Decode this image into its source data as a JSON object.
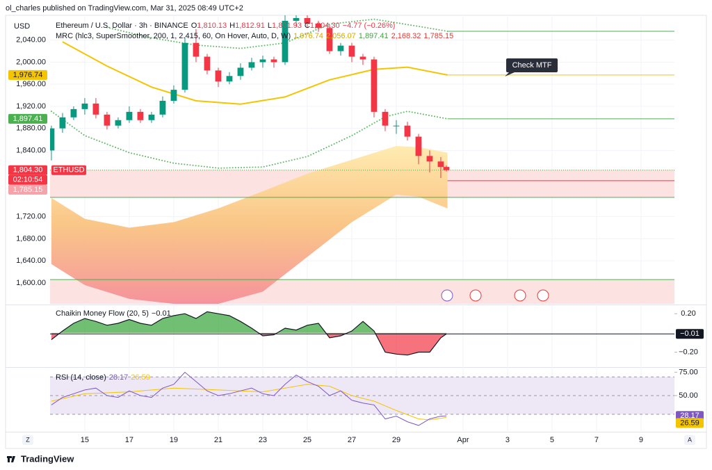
{
  "header": {
    "attribution": "ol_charles published on TradingView.com, Mar 31, 2025 08:49 UTC+2",
    "currency": "USD",
    "logo": "TradingView",
    "zoom_left": "Z",
    "zoom_right": "A"
  },
  "chart_data": [
    {
      "type": "candlestick",
      "title": "Ethereum / U.S. Dollar · 3h · BINANCE",
      "ohlc_legend": [
        {
          "key": "O",
          "text": "1,810.13"
        },
        {
          "key": "H",
          "text": "1,812.91"
        },
        {
          "key": "L",
          "text": "1,801.93"
        },
        {
          "key": "C",
          "text": "1,804.30"
        }
      ],
      "change": "−4.77 (−0.26%)",
      "indicator_title": "MRC (hlc3, SuperSmoother, 200, 1, 2.415, 60, On Hover, Auto, D, W)",
      "indicator_values": [
        {
          "text": "1,976.74",
          "color": "#d4a800"
        },
        {
          "text": "2,056.07",
          "color": "#d4a800"
        },
        {
          "text": "1,897.41",
          "color": "#43a047"
        },
        {
          "text": "2,168.32",
          "color": "#e53935"
        },
        {
          "text": "1,785.15",
          "color": "#e53935"
        }
      ],
      "x": [
        13.5,
        14,
        14.5,
        15,
        15.5,
        16,
        16.5,
        17,
        17.5,
        18,
        18.5,
        19,
        19.5,
        20,
        20.5,
        21,
        21.5,
        22,
        22.5,
        23,
        23.5,
        24,
        24.5,
        25,
        25.5,
        26,
        26.5,
        27,
        27.5,
        28,
        28.5,
        29,
        29.5,
        30,
        30.5,
        31,
        31.25
      ],
      "open": [
        1840,
        1880,
        1900,
        1915,
        1925,
        1905,
        1885,
        1895,
        1910,
        1895,
        1905,
        1930,
        1950,
        2035,
        2010,
        1985,
        1965,
        1975,
        1990,
        2000,
        2005,
        2000,
        2075,
        2080,
        2070,
        2062,
        2020,
        2030,
        2010,
        2005,
        1910,
        1885,
        1885,
        1865,
        1830,
        1820,
        1810.13
      ],
      "high": [
        1885,
        1908,
        1920,
        1935,
        1935,
        1910,
        1900,
        1920,
        1915,
        1910,
        1938,
        1958,
        2045,
        2060,
        2015,
        1990,
        1982,
        1998,
        2008,
        2012,
        2010,
        2085,
        2090,
        2085,
        2075,
        2068,
        2035,
        2035,
        2015,
        2010,
        1915,
        1895,
        1892,
        1870,
        1840,
        1828,
        1812.91
      ],
      "low": [
        1822,
        1872,
        1895,
        1905,
        1898,
        1878,
        1880,
        1890,
        1890,
        1890,
        1900,
        1925,
        1945,
        2000,
        1978,
        1955,
        1960,
        1968,
        1985,
        1990,
        1990,
        1995,
        2065,
        2062,
        2055,
        2015,
        2012,
        2000,
        1995,
        1900,
        1875,
        1870,
        1858,
        1815,
        1800,
        1790,
        1801.93
      ],
      "close": [
        1880,
        1900,
        1915,
        1925,
        1905,
        1885,
        1895,
        1910,
        1895,
        1905,
        1930,
        1950,
        2035,
        2010,
        1985,
        1965,
        1975,
        1990,
        2000,
        2005,
        2000,
        2075,
        2080,
        2070,
        2062,
        2020,
        2030,
        2010,
        2005,
        1910,
        1885,
        1885,
        1865,
        1830,
        1820,
        1810,
        1804.3
      ],
      "up_color": "#089981",
      "down_color": "#f23645",
      "ylim": [
        1562,
        2085
      ],
      "yticks": [
        {
          "value": 2040,
          "label": "2,040.00"
        },
        {
          "value": 2000,
          "label": "2,000.00"
        },
        {
          "value": 1960,
          "label": "1,960.00"
        },
        {
          "value": 1920,
          "label": "1,920.00"
        },
        {
          "value": 1880,
          "label": "1,880.00"
        },
        {
          "value": 1840,
          "label": "1,840.00"
        },
        {
          "value": 1720,
          "label": "1,720.00"
        },
        {
          "value": 1680,
          "label": "1,680.00"
        },
        {
          "value": 1640,
          "label": "1,640.00"
        },
        {
          "value": 1600,
          "label": "1,600.00"
        }
      ],
      "xlim": [
        13.44,
        41.5
      ],
      "xticks": [
        15,
        17,
        19,
        21,
        23,
        25,
        27,
        29,
        {
          "value": 32,
          "label": "Apr"
        },
        {
          "value": 34,
          "label": "3"
        },
        {
          "value": 36,
          "label": "5"
        },
        {
          "value": 38,
          "label": "7"
        },
        {
          "value": 40,
          "label": "9"
        }
      ],
      "grid": true,
      "mrc_mean": {
        "color": "#f5c400",
        "x": [
          14,
          16,
          18,
          20,
          22,
          24,
          26,
          28,
          29.5,
          31.3
        ],
        "values": [
          2037,
          1993,
          1955,
          1930,
          1924,
          1937,
          1968,
          1987,
          1991,
          1976.74
        ]
      },
      "mrc_upper": {
        "color": "#66bb6a",
        "x": [
          16,
          18,
          20,
          22,
          24,
          26,
          28,
          30,
          31.3
        ],
        "values": [
          2063,
          2044,
          2031,
          2025,
          2035,
          2069,
          2078,
          2065,
          2056.07
        ]
      },
      "mrc_lower": {
        "color": "#66bb6a",
        "x": [
          13.5,
          15,
          17,
          19,
          21,
          23,
          25,
          27,
          28.5,
          29.5,
          31.3
        ],
        "values": [
          1911,
          1867,
          1836,
          1817,
          1808,
          1810,
          1829,
          1867,
          1901,
          1911,
          1897.41
        ]
      },
      "mrc_band": {
        "x": [
          13.5,
          15,
          17,
          19,
          21,
          23,
          25,
          27,
          29,
          30,
          31.3
        ],
        "upper": [
          1754,
          1716,
          1700,
          1710,
          1735,
          1766,
          1798,
          1823,
          1848,
          1846,
          1836
        ],
        "lower": [
          1634,
          1596,
          1571,
          1562,
          1562,
          1584,
          1647,
          1710,
          1760,
          1756,
          1735
        ]
      },
      "zones": [
        {
          "from": 1755,
          "to": 1805,
          "color": "#fde2e2"
        },
        {
          "from": 1562,
          "to": 1606,
          "color": "#fde2e2"
        }
      ],
      "levels": [
        {
          "value": 2056.07,
          "color": "#4caf50",
          "full": false
        },
        {
          "value": 1976.74,
          "color": "#f5c400",
          "full": false
        },
        {
          "value": 1897.41,
          "color": "#4caf50",
          "full": false
        },
        {
          "value": 1785.15,
          "color": "#f23645",
          "full": false
        },
        {
          "value": 1755,
          "color": "#4caf50",
          "full": true
        },
        {
          "value": 1606,
          "color": "#4caf50",
          "full": true
        }
      ],
      "price_labels": [
        {
          "value": 1976.74,
          "label": "1,976.74",
          "color": "#f5c400",
          "text_color": "#131722"
        },
        {
          "value": 1897.41,
          "label": "1,897.41",
          "color": "#4caf50",
          "text_color": "#ffffff"
        }
      ],
      "last_price": {
        "value": 1804.3,
        "label": "1,804.30",
        "symbol": "ETHUSD",
        "countdown": "02:10:54",
        "color": "#f23645"
      },
      "mrc_low_label": {
        "value": 1785.15,
        "label": "1,785.15",
        "color": "#f7a1a8"
      },
      "callout": "Check MTF"
    },
    {
      "type": "area",
      "title": "Chaikin Money Flow (20, 5)",
      "value_label": "−0.01",
      "x": [
        13.5,
        14,
        14.5,
        15,
        15.5,
        16,
        16.5,
        17,
        17.5,
        18,
        18.5,
        19,
        19.5,
        20,
        20.5,
        21,
        21.5,
        22,
        22.5,
        23,
        23.5,
        24,
        24.5,
        25,
        25.5,
        26,
        26.5,
        27,
        27.5,
        28,
        28.5,
        29,
        29.5,
        30,
        30.5,
        31,
        31.25
      ],
      "values": [
        -0.07,
        0.02,
        0.1,
        0.15,
        0.12,
        0.08,
        0.1,
        0.14,
        0.1,
        0.08,
        0.15,
        0.18,
        0.2,
        0.15,
        0.22,
        0.2,
        0.18,
        0.12,
        0.05,
        -0.03,
        -0.02,
        0.05,
        0.03,
        0.08,
        0.1,
        -0.05,
        -0.03,
        0.02,
        0.12,
        0.02,
        -0.2,
        -0.22,
        -0.23,
        -0.2,
        -0.2,
        -0.05,
        -0.01
      ],
      "positive_color": "#4caf50",
      "negative_color": "#f23645",
      "ylim": [
        -0.348,
        0.281
      ],
      "yticks": [
        {
          "value": 0.2,
          "label": "0.20"
        },
        {
          "value": -0.2,
          "label": "−0.20"
        }
      ]
    },
    {
      "type": "line",
      "title": "RSI (14, close)",
      "rsi": {
        "color": "#7e57c2",
        "value_label": "28.17",
        "x": [
          13.5,
          14,
          14.5,
          15,
          15.5,
          16,
          16.5,
          17,
          17.5,
          18,
          18.5,
          19,
          19.5,
          20,
          20.5,
          21,
          21.5,
          22,
          22.5,
          23,
          23.5,
          24,
          24.5,
          25,
          25.5,
          26,
          26.5,
          27,
          27.5,
          28,
          28.5,
          29,
          29.5,
          30,
          30.5,
          31,
          31.25
        ],
        "values": [
          40,
          48,
          52,
          56,
          58,
          50,
          48,
          55,
          50,
          48,
          58,
          62,
          75,
          65,
          55,
          50,
          52,
          55,
          58,
          52,
          50,
          62,
          72,
          65,
          60,
          50,
          55,
          45,
          42,
          40,
          25,
          28,
          22,
          18,
          25,
          28,
          28.17
        ]
      },
      "rsi_ma": {
        "color": "#f5c400",
        "value_label": "26.59",
        "x": [
          13.5,
          15,
          17,
          19,
          21,
          23,
          25,
          26,
          27,
          28,
          29,
          30,
          30.5,
          31.25
        ],
        "values": [
          44,
          52,
          54,
          58,
          56,
          54,
          62,
          60,
          50,
          44,
          34,
          25,
          24,
          26.59
        ]
      },
      "band": [
        30,
        70
      ],
      "band_color": "#ede7f6",
      "ylim": [
        12,
        79
      ],
      "yticks": [
        {
          "value": 75,
          "label": "75.00"
        },
        {
          "value": 50,
          "label": "50.00"
        }
      ]
    }
  ]
}
